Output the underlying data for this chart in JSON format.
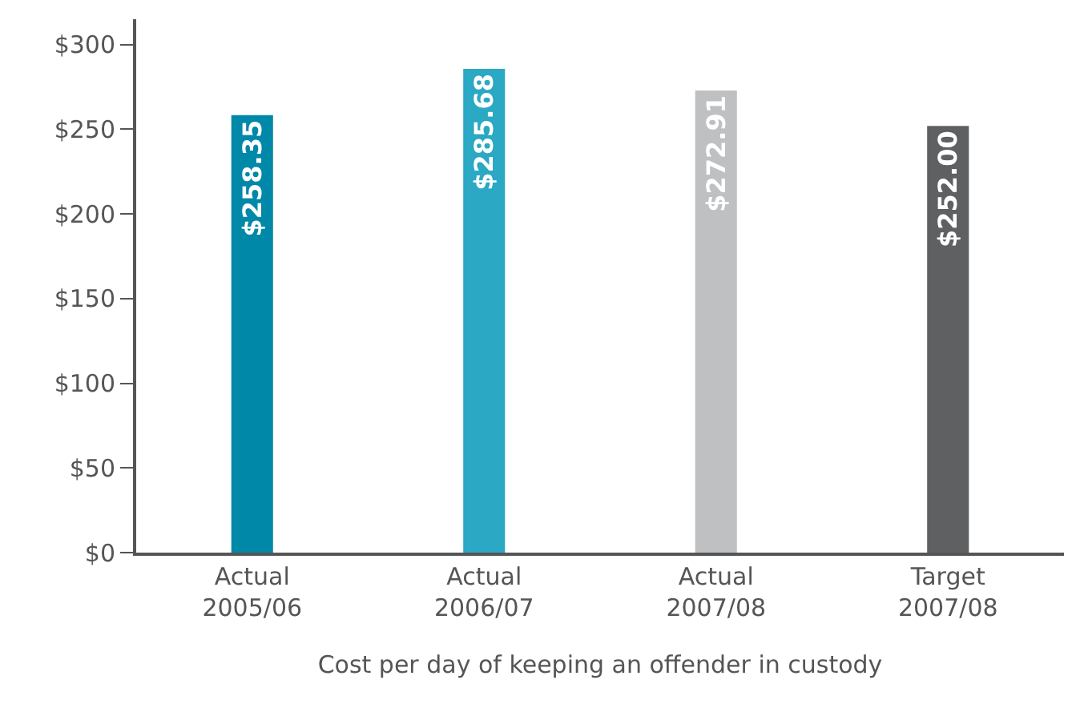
{
  "chart_data": {
    "type": "bar",
    "xlabel": "Cost per day of keeping an offender in custody",
    "categories": [
      "Actual\n2005/06",
      "Actual\n2006/07",
      "Actual\n2007/08",
      "Target\n2007/08"
    ],
    "values": [
      258.35,
      285.68,
      272.91,
      252.0
    ],
    "colors": [
      "#0088a8",
      "#2aa8c4",
      "#bfc0c2",
      "#5f6062"
    ],
    "value_labels": [
      "$258.35",
      "$285.68",
      "$272.91",
      "$252.00"
    ],
    "ylim": [
      0,
      315
    ],
    "yticks": [
      {
        "value": 0,
        "label": "$0"
      },
      {
        "value": 50,
        "label": "$50"
      },
      {
        "value": 100,
        "label": "$100"
      },
      {
        "value": 150,
        "label": "$150"
      },
      {
        "value": 200,
        "label": "$200"
      },
      {
        "value": 250,
        "label": "$250"
      },
      {
        "value": 300,
        "label": "$300"
      }
    ],
    "grid": false,
    "legend": false
  }
}
